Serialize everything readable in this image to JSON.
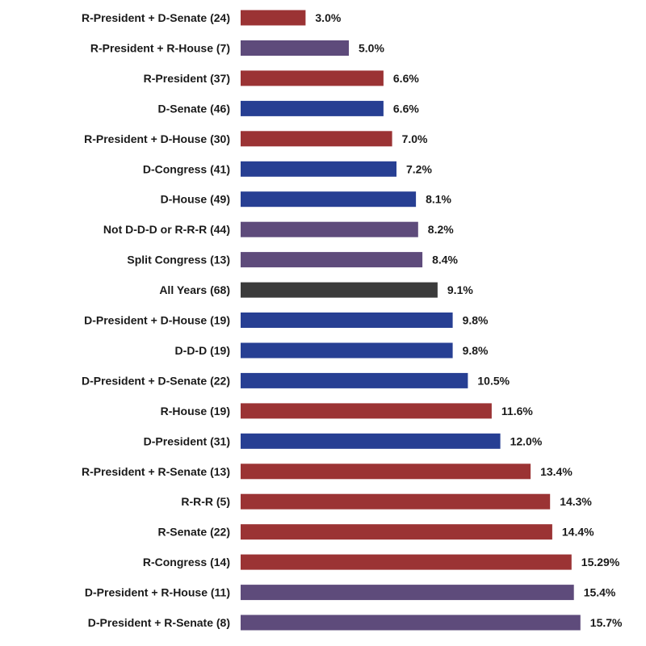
{
  "colors": {
    "republican": "#9b3334",
    "democrat": "#273f93",
    "mixed": "#5e4b7b",
    "all": "#3b3b3b"
  },
  "chart_data": {
    "type": "bar",
    "orientation": "horizontal",
    "title": "",
    "xlabel": "",
    "ylabel": "",
    "xlim": [
      0,
      16
    ],
    "grid": false,
    "legend": "none",
    "categories": [
      "R-President + D-Senate (24)",
      "R-President + R-House (7)",
      "R-President (37)",
      "D-Senate (46)",
      "R-President + D-House (30)",
      "D-Congress (41)",
      "D-House (49)",
      "Not D-D-D or R-R-R (44)",
      "Split Congress (13)",
      "All Years (68)",
      "D-President + D-House (19)",
      "D-D-D (19)",
      "D-President + D-Senate (22)",
      "R-House (19)",
      "D-President (31)",
      "R-President + R-Senate (13)",
      "R-R-R (5)",
      "R-Senate (22)",
      "R-Congress (14)",
      "D-President + R-House (11)",
      "D-President + R-Senate (8)"
    ],
    "values": [
      3.0,
      5.0,
      6.6,
      6.6,
      7.0,
      7.2,
      8.1,
      8.2,
      8.4,
      9.1,
      9.8,
      9.8,
      10.5,
      11.6,
      12.0,
      13.4,
      14.3,
      14.4,
      15.29,
      15.4,
      15.7
    ],
    "value_labels": [
      "3.0%",
      "5.0%",
      "6.6%",
      "6.6%",
      "7.0%",
      "7.2%",
      "8.1%",
      "8.2%",
      "8.4%",
      "9.1%",
      "9.8%",
      "9.8%",
      "10.5%",
      "11.6%",
      "12.0%",
      "13.4%",
      "14.3%",
      "14.4%",
      "15.29%",
      "15.4%",
      "15.7%"
    ],
    "bar_groups": [
      "republican",
      "mixed",
      "republican",
      "democrat",
      "republican",
      "democrat",
      "democrat",
      "mixed",
      "mixed",
      "all",
      "democrat",
      "democrat",
      "democrat",
      "republican",
      "democrat",
      "republican",
      "republican",
      "republican",
      "republican",
      "mixed",
      "mixed"
    ]
  }
}
